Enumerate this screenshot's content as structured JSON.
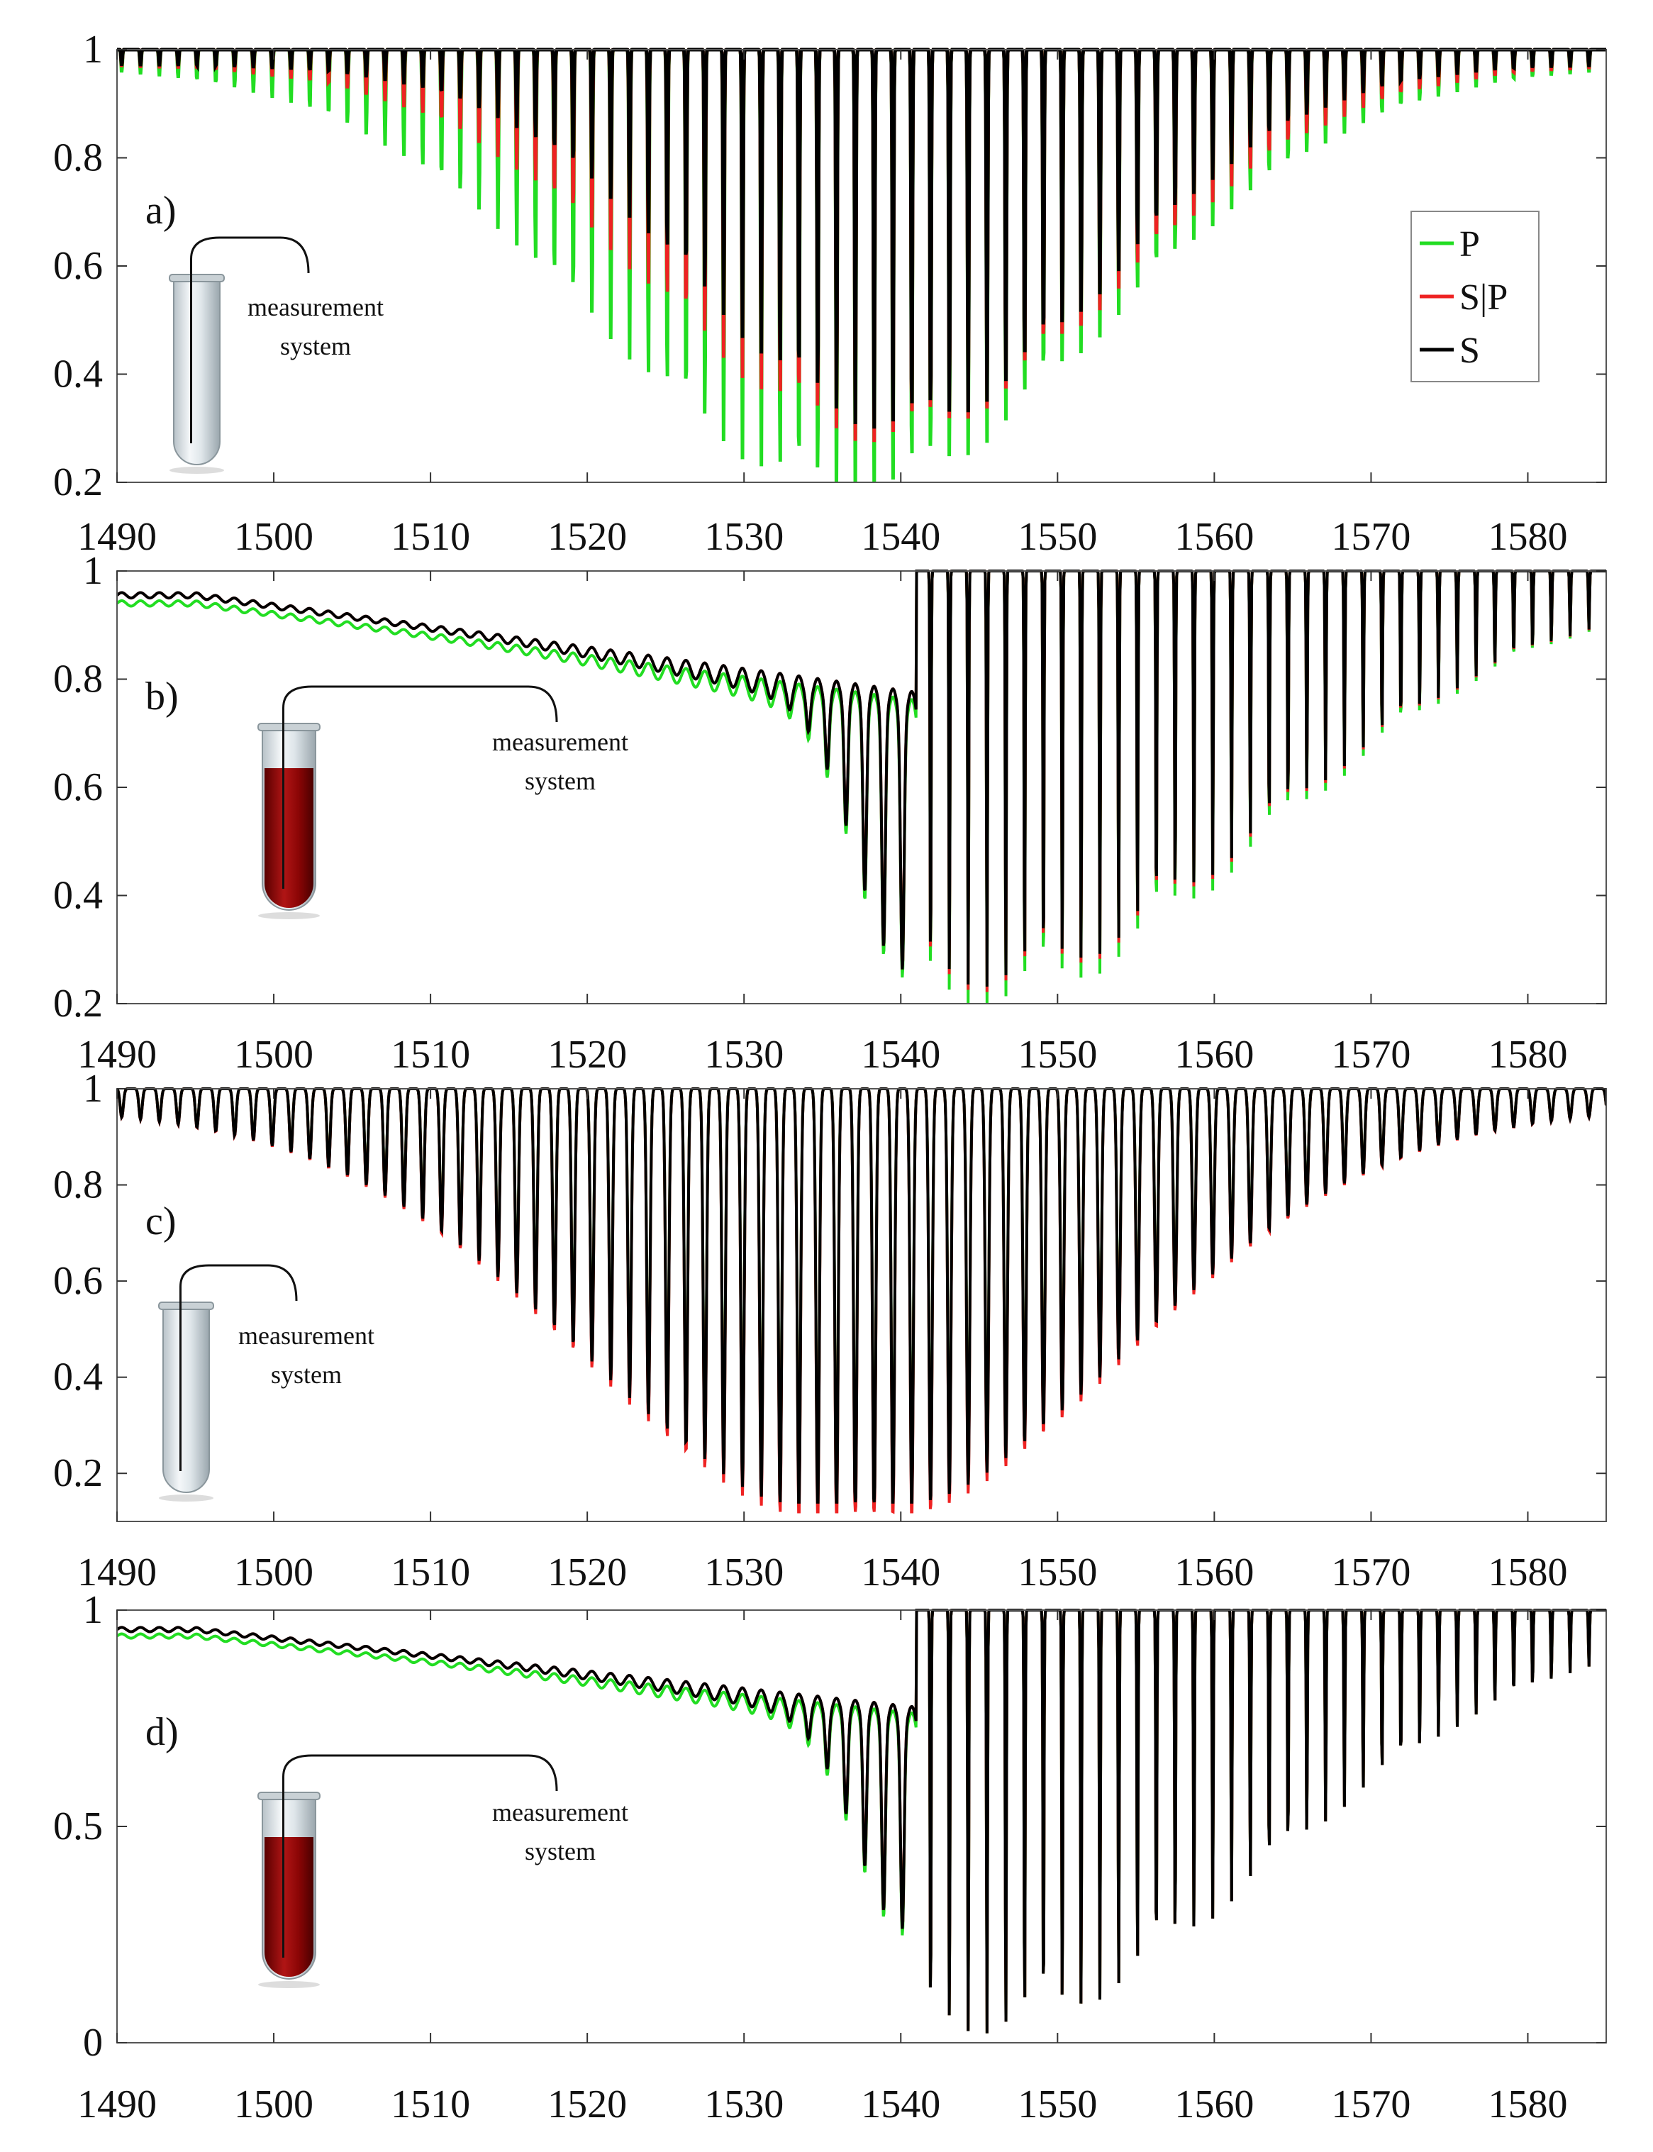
{
  "chart_data": [
    {
      "type": "line",
      "panel": "a)",
      "x_range": [
        1490,
        1585
      ],
      "ylim": [
        0.2,
        1.0
      ],
      "yticks": [
        0.2,
        0.4,
        0.6,
        0.8,
        1
      ],
      "xticks": [
        1490,
        1500,
        1510,
        1520,
        1530,
        1540,
        1550,
        1560,
        1570,
        1580
      ],
      "fringe_period_nm": 1.2,
      "sample": "empty tube",
      "annotation": [
        "measurement",
        "system"
      ],
      "series": [
        {
          "name": "P",
          "color": "#22dd22",
          "dip_center": 1537,
          "dip_width": 20,
          "dip_min": 0.2
        },
        {
          "name": "S|P",
          "color": "#ee2222",
          "dip_center": 1539,
          "dip_width": 18,
          "dip_min": 0.3
        },
        {
          "name": "S",
          "color": "#000000",
          "dip_center": 1540,
          "dip_width": 16,
          "dip_min": 0.32
        }
      ],
      "legend": [
        "P",
        "S|P",
        "S"
      ]
    },
    {
      "type": "line",
      "panel": "b)",
      "x_range": [
        1490,
        1585
      ],
      "ylim": [
        0.2,
        1.0
      ],
      "yticks": [
        0.2,
        0.4,
        0.6,
        0.8,
        1
      ],
      "xticks": [
        1490,
        1500,
        1510,
        1520,
        1530,
        1540,
        1550,
        1560,
        1570,
        1580
      ],
      "sample": "blood-filled tube",
      "annotation": [
        "measurement",
        "system"
      ],
      "cutoff_nm": 1541,
      "series": [
        {
          "name": "P",
          "color": "#22dd22",
          "min": 0.22
        },
        {
          "name": "S|P",
          "color": "#ee2222",
          "min": 0.25
        },
        {
          "name": "S",
          "color": "#000000",
          "min": 0.26
        }
      ]
    },
    {
      "type": "line",
      "panel": "c)",
      "x_range": [
        1490,
        1585
      ],
      "ylim": [
        0.1,
        1.0
      ],
      "yticks": [
        0.2,
        0.4,
        0.6,
        0.8,
        1
      ],
      "xticks": [
        1490,
        1500,
        1510,
        1520,
        1530,
        1540,
        1550,
        1560,
        1570,
        1580
      ],
      "sample": "empty tube",
      "annotation": [
        "measurement",
        "system"
      ],
      "series": [
        {
          "name": "P",
          "color": "#22dd22",
          "min": 0.16
        },
        {
          "name": "S|P",
          "color": "#ee2222",
          "min": 0.12
        },
        {
          "name": "S",
          "color": "#000000",
          "min": 0.14
        }
      ]
    },
    {
      "type": "line",
      "panel": "d)",
      "x_range": [
        1490,
        1585
      ],
      "ylim": [
        0,
        1.0
      ],
      "yticks": [
        0,
        0.5,
        1
      ],
      "xticks": [
        1490,
        1500,
        1510,
        1520,
        1530,
        1540,
        1550,
        1560,
        1570,
        1580
      ],
      "sample": "blood-filled tube",
      "annotation": [
        "measurement",
        "system"
      ],
      "cutoff_nm": 1541,
      "series": [
        {
          "name": "P",
          "color": "#22dd22",
          "min": 0.05
        },
        {
          "name": "S|P",
          "color": "#ee2222",
          "min": 0.05
        },
        {
          "name": "S",
          "color": "#000000",
          "min": 0.05
        }
      ]
    }
  ]
}
